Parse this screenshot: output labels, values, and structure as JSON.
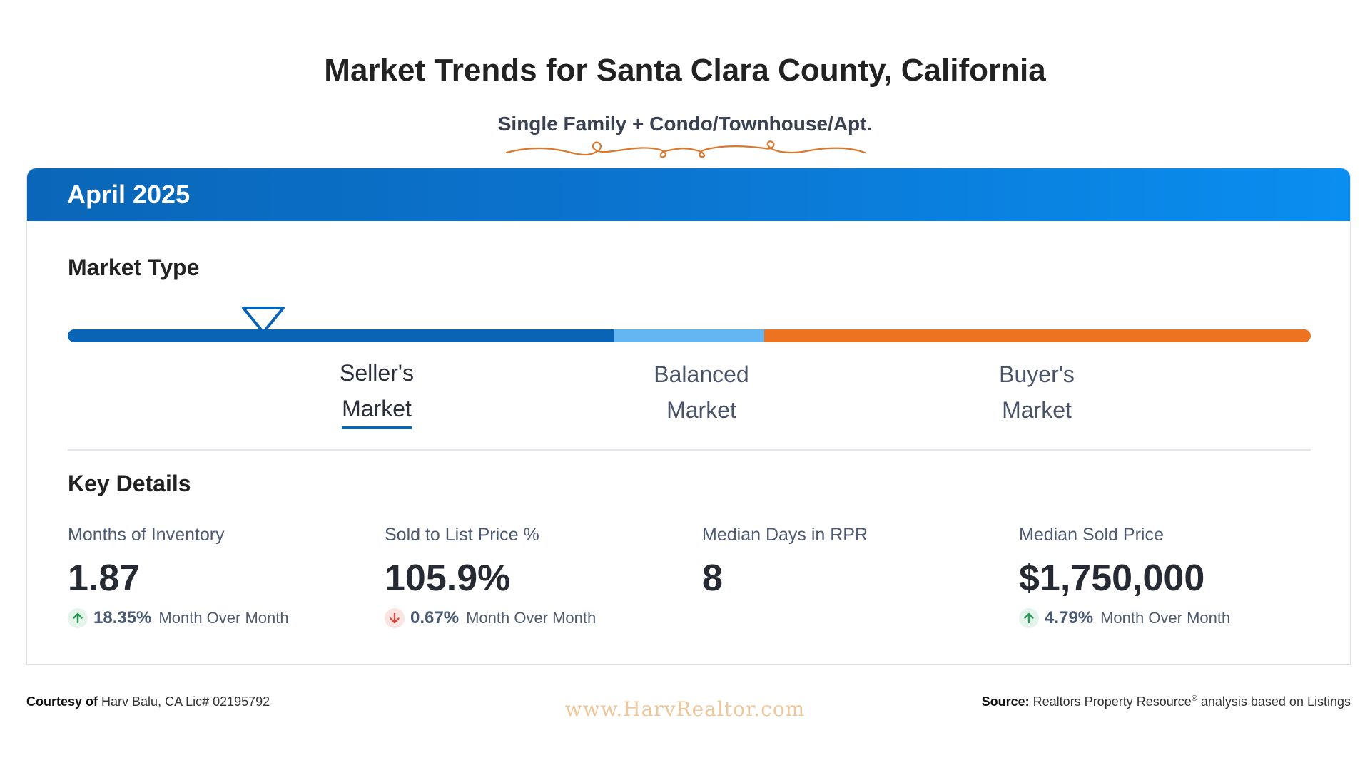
{
  "title": "Market Trends for Santa Clara County, California",
  "subtitle": "Single Family + Condo/Townhouse/Apt.",
  "colors": {
    "header_start": "#0a66b8",
    "header_end": "#0a8ef0",
    "seller": "#0a64b6",
    "balanced": "#63b6f2",
    "buyer": "#ee7320",
    "up": "#2a9a5a",
    "down": "#d44a3a",
    "flourish": "#d9782f"
  },
  "period": "April 2025",
  "market_type": {
    "heading": "Market Type",
    "seller_line1": "Seller's",
    "seller_line2": "Market",
    "balanced_line1": "Balanced",
    "balanced_line2": "Market",
    "buyer_line1": "Buyer's",
    "buyer_line2": "Market",
    "current": "Seller's Market"
  },
  "key_details": {
    "heading": "Key Details",
    "metrics": [
      {
        "label": "Months of Inventory",
        "value": "1.87",
        "change": "18.35%",
        "direction": "up",
        "period_label": "Month Over Month"
      },
      {
        "label": "Sold to List Price %",
        "value": "105.9%",
        "change": "0.67%",
        "direction": "down",
        "period_label": "Month Over Month"
      },
      {
        "label": "Median Days in RPR",
        "value": "8"
      },
      {
        "label": "Median Sold Price",
        "value": "$1,750,000",
        "change": "4.79%",
        "direction": "up",
        "period_label": "Month Over Month"
      }
    ]
  },
  "footer": {
    "courtesy_label": "Courtesy of",
    "courtesy_text": "Harv Balu, CA Lic# 02195792",
    "website": "www.HarvRealtor.com",
    "source_label": "Source:",
    "source_text_pre": "Realtors Property Resource",
    "source_reg": "®",
    "source_text_post": " analysis based on Listings"
  }
}
